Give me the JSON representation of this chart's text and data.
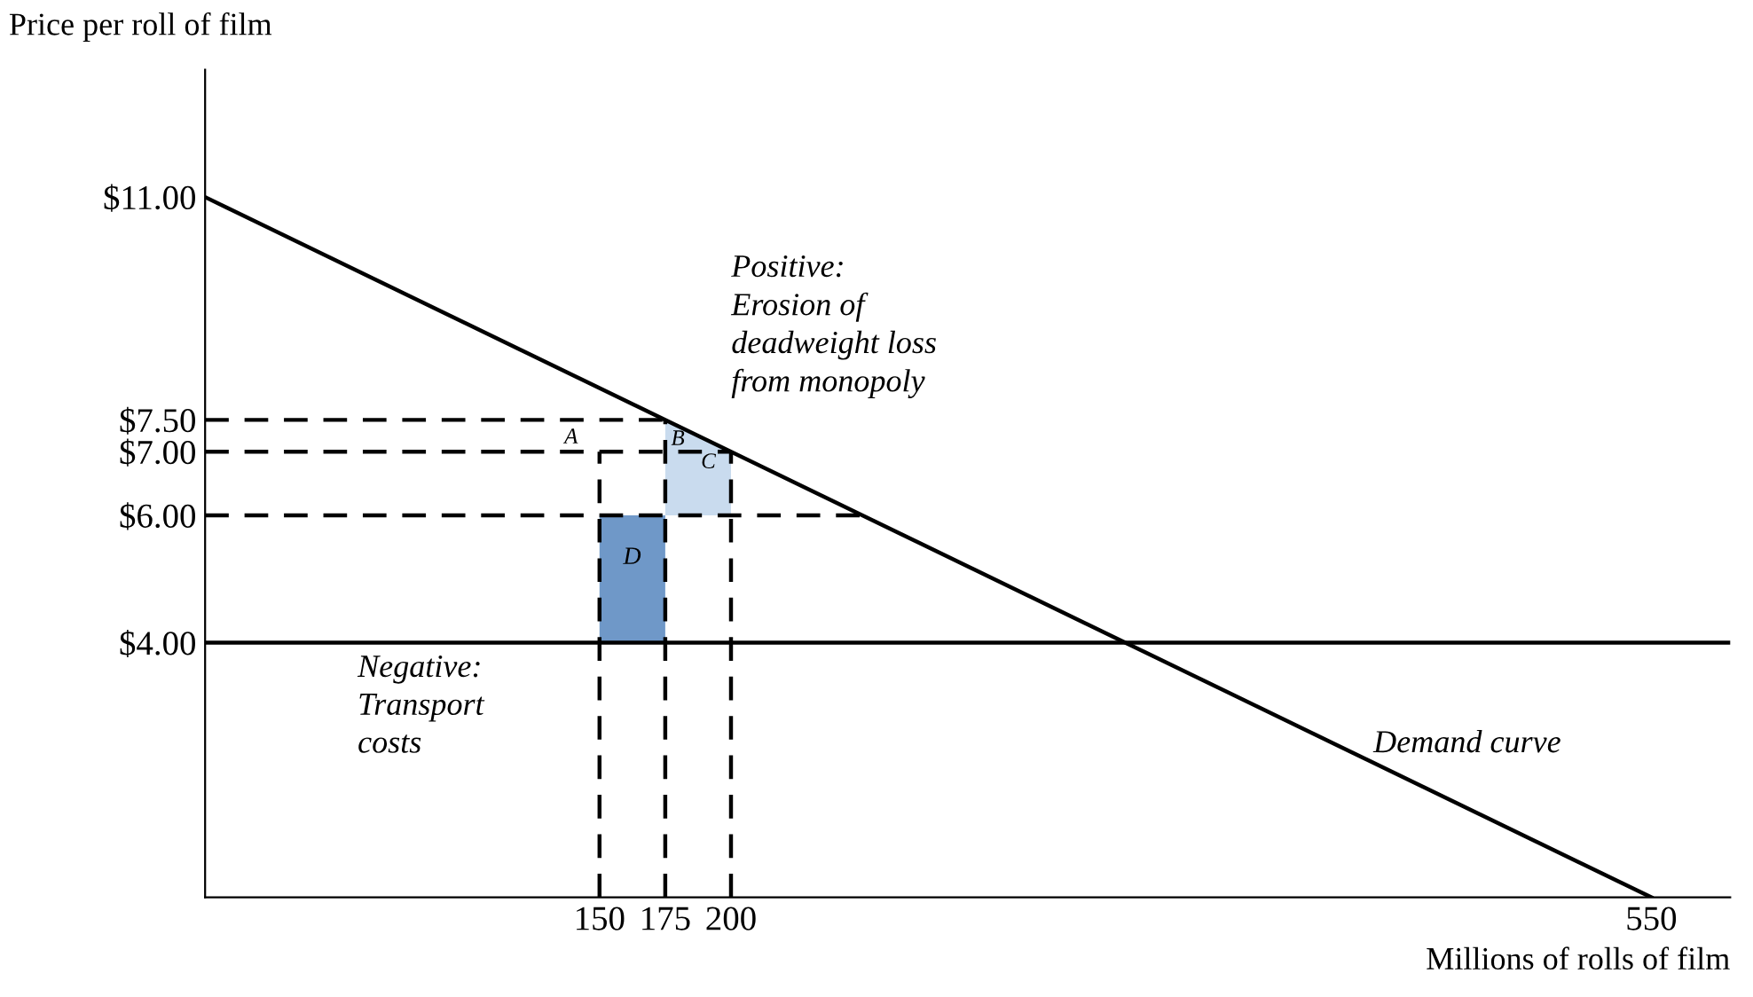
{
  "chart_data": {
    "type": "line",
    "xlabel": "Millions of rolls of film",
    "ylabel": "Price per roll of film",
    "xlim": [
      0,
      580
    ],
    "ylim": [
      0,
      13
    ],
    "xticks": [
      150,
      175,
      200,
      550
    ],
    "yticks": [
      {
        "value": 4,
        "label": "$4.00"
      },
      {
        "value": 6,
        "label": "$6.00"
      },
      {
        "value": 7,
        "label": "$7.00"
      },
      {
        "value": 7.5,
        "label": "$7.50"
      },
      {
        "value": 11,
        "label": "$11.00"
      }
    ],
    "grid": false,
    "legend": false,
    "ref_lines": [
      {
        "axis": "y",
        "value": 4,
        "color": "#000000",
        "line_style": "solid"
      }
    ],
    "series": [
      {
        "name": "Demand curve",
        "color": "#000000",
        "x": [
          0,
          550
        ],
        "values": [
          11,
          0
        ],
        "line_style": "solid"
      },
      {
        "type": "area",
        "color": "#6f98c8",
        "x": [
          150,
          150,
          175,
          175
        ],
        "values": [
          4,
          6,
          6,
          4
        ]
      },
      {
        "type": "area",
        "color": "#c9dbee",
        "x": [
          175,
          175,
          200,
          200
        ],
        "values": [
          6,
          7.5,
          7,
          6
        ]
      },
      {
        "color": "#000000",
        "x": [
          0,
          175
        ],
        "values": [
          7.5,
          7.5
        ],
        "line_style": "dashed"
      },
      {
        "color": "#000000",
        "x": [
          0,
          200
        ],
        "values": [
          7,
          7
        ],
        "line_style": "dashed"
      },
      {
        "color": "#000000",
        "x": [
          0,
          250
        ],
        "values": [
          6,
          6
        ],
        "line_style": "dashed"
      },
      {
        "color": "#000000",
        "x": [
          150,
          150
        ],
        "values": [
          0,
          7
        ],
        "line_style": "dashed"
      },
      {
        "color": "#000000",
        "x": [
          175,
          175
        ],
        "values": [
          0,
          7.5
        ],
        "line_style": "dashed"
      },
      {
        "color": "#000000",
        "x": [
          200,
          200
        ],
        "values": [
          0,
          7
        ],
        "line_style": "dashed"
      }
    ],
    "annotations": [
      "A",
      "B",
      "C",
      "D",
      "Positive:\nErosion of\ndeadweight loss\nfrom monopoly",
      "Negative:\nTransport\ncosts"
    ]
  }
}
